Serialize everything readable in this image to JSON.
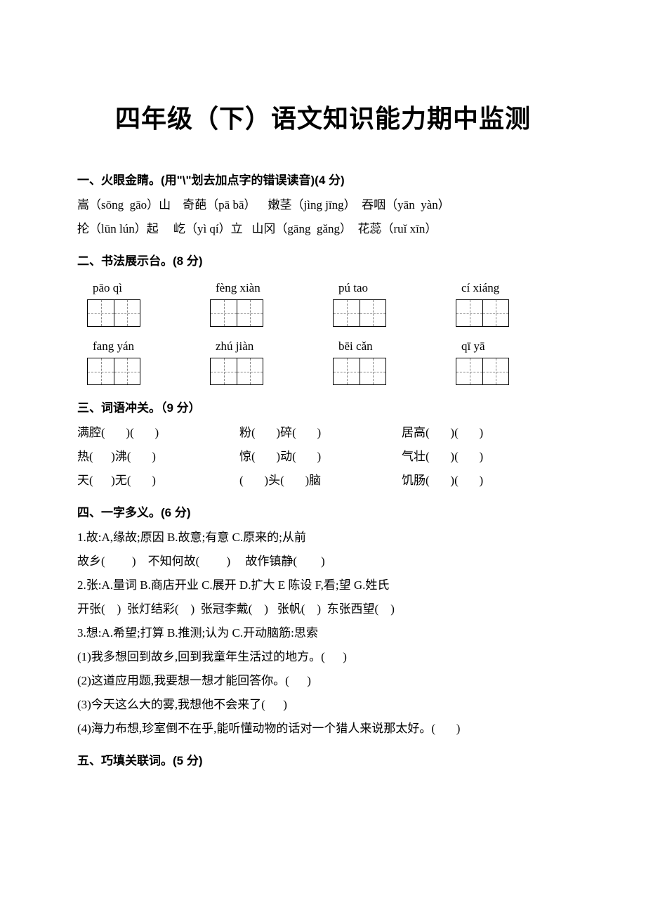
{
  "title": "四年级（下）语文知识能力期中监测",
  "section1": {
    "head": "一、火眼金睛。(用\"\\\"划去加点字的错误读音)(4 分)",
    "line1": "嵩（sōng  gāo）山    奇葩（pā bā）    嫩茎（jìng jīng）  吞咽（yān  yàn）",
    "line2": "抡（lūn lún）起     屹（yì qí）立   山冈（gāng  gǎng）  花蕊（ruǐ xīn）"
  },
  "section2": {
    "head": "二、书法展示台。(8 分)",
    "row1": [
      "pāo qì",
      "fèng xiàn",
      "pú tao",
      "cí xiáng"
    ],
    "row2": [
      "fang  yán",
      "zhú jiàn",
      "bēi  cǎn",
      "qī   yā"
    ]
  },
  "section3": {
    "head": "三、词语冲关。（9 分）",
    "rows": [
      [
        "满腔(       )(       )",
        "粉(       )碎(       )",
        "居高(       )(       )"
      ],
      [
        "热(      )沸(       )",
        "惊(       )动(       )",
        "气壮(       )(       )"
      ],
      [
        "天(      )无(       )",
        "(       )头(       )脑",
        "饥肠(       )(       )"
      ]
    ]
  },
  "section4": {
    "head": "四、一字多义。(6 分)",
    "q1_stem": "1.故:A,缘故;原因 B.故意;有意 C.原来的;从前",
    "q1_items": "故乡(         )    不知何故(         )     故作镇静(        )",
    "q2_stem": "2.张:A.量词 B.商店开业 C.展开 D.扩大 E 陈设 F,看;望 G.姓氏",
    "q2_items": "开张(    )  张灯结彩(    )  张冠李戴(    )   张帆(    )  东张西望(    )",
    "q3_stem": "3.想:A.希望;打算 B.推测;认为 C.开动脑筋:思索",
    "q3_1": "(1)我多想回到故乡,回到我童年生活过的地方。(      )",
    "q3_2": "(2)这道应用题,我要想一想才能回答你。(      )",
    "q3_3": "(3)今天这么大的雾,我想他不会来了(      )",
    "q3_4": "(4)海力布想,珍室倒不在乎,能听懂动物的话对一个猎人来说那太好。(       )"
  },
  "section5": {
    "head": "五、巧填关联词。(5 分)"
  }
}
